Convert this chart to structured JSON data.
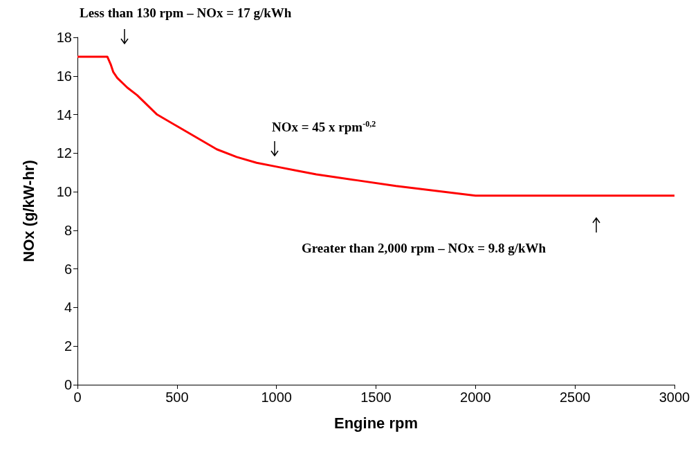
{
  "chart_data": {
    "type": "line",
    "xlabel": "Engine rpm",
    "ylabel": "NOx (g/kW-hr)",
    "x": [
      0,
      150,
      167,
      180,
      200,
      250,
      300,
      400,
      500,
      600,
      700,
      800,
      900,
      1000,
      1100,
      1200,
      1400,
      1600,
      1800,
      2000,
      3000
    ],
    "series": [
      {
        "color": "#ff0000",
        "values": [
          17,
          17,
          16.6,
          16.2,
          15.9,
          15.4,
          15.0,
          14.0,
          13.4,
          12.8,
          12.2,
          11.8,
          11.5,
          11.3,
          11.1,
          10.9,
          10.6,
          10.3,
          10.05,
          9.8,
          9.8
        ]
      }
    ],
    "xlim": [
      0,
      3000
    ],
    "xticks": [
      0,
      500,
      1000,
      1500,
      2000,
      2500,
      3000
    ],
    "ylim": [
      0,
      18
    ],
    "yticks": [
      0,
      2,
      4,
      6,
      8,
      10,
      12,
      14,
      16,
      18
    ],
    "grid": false,
    "marker": "none",
    "line_style": "solid",
    "annotations": [
      "Less than 130 rpm – NOx = 17 g/kWh",
      "NOx = 45 x rpm$^{-0,2}$",
      "Greater than 2,000 rpm – NOx = 9.8 g/kWh"
    ]
  }
}
